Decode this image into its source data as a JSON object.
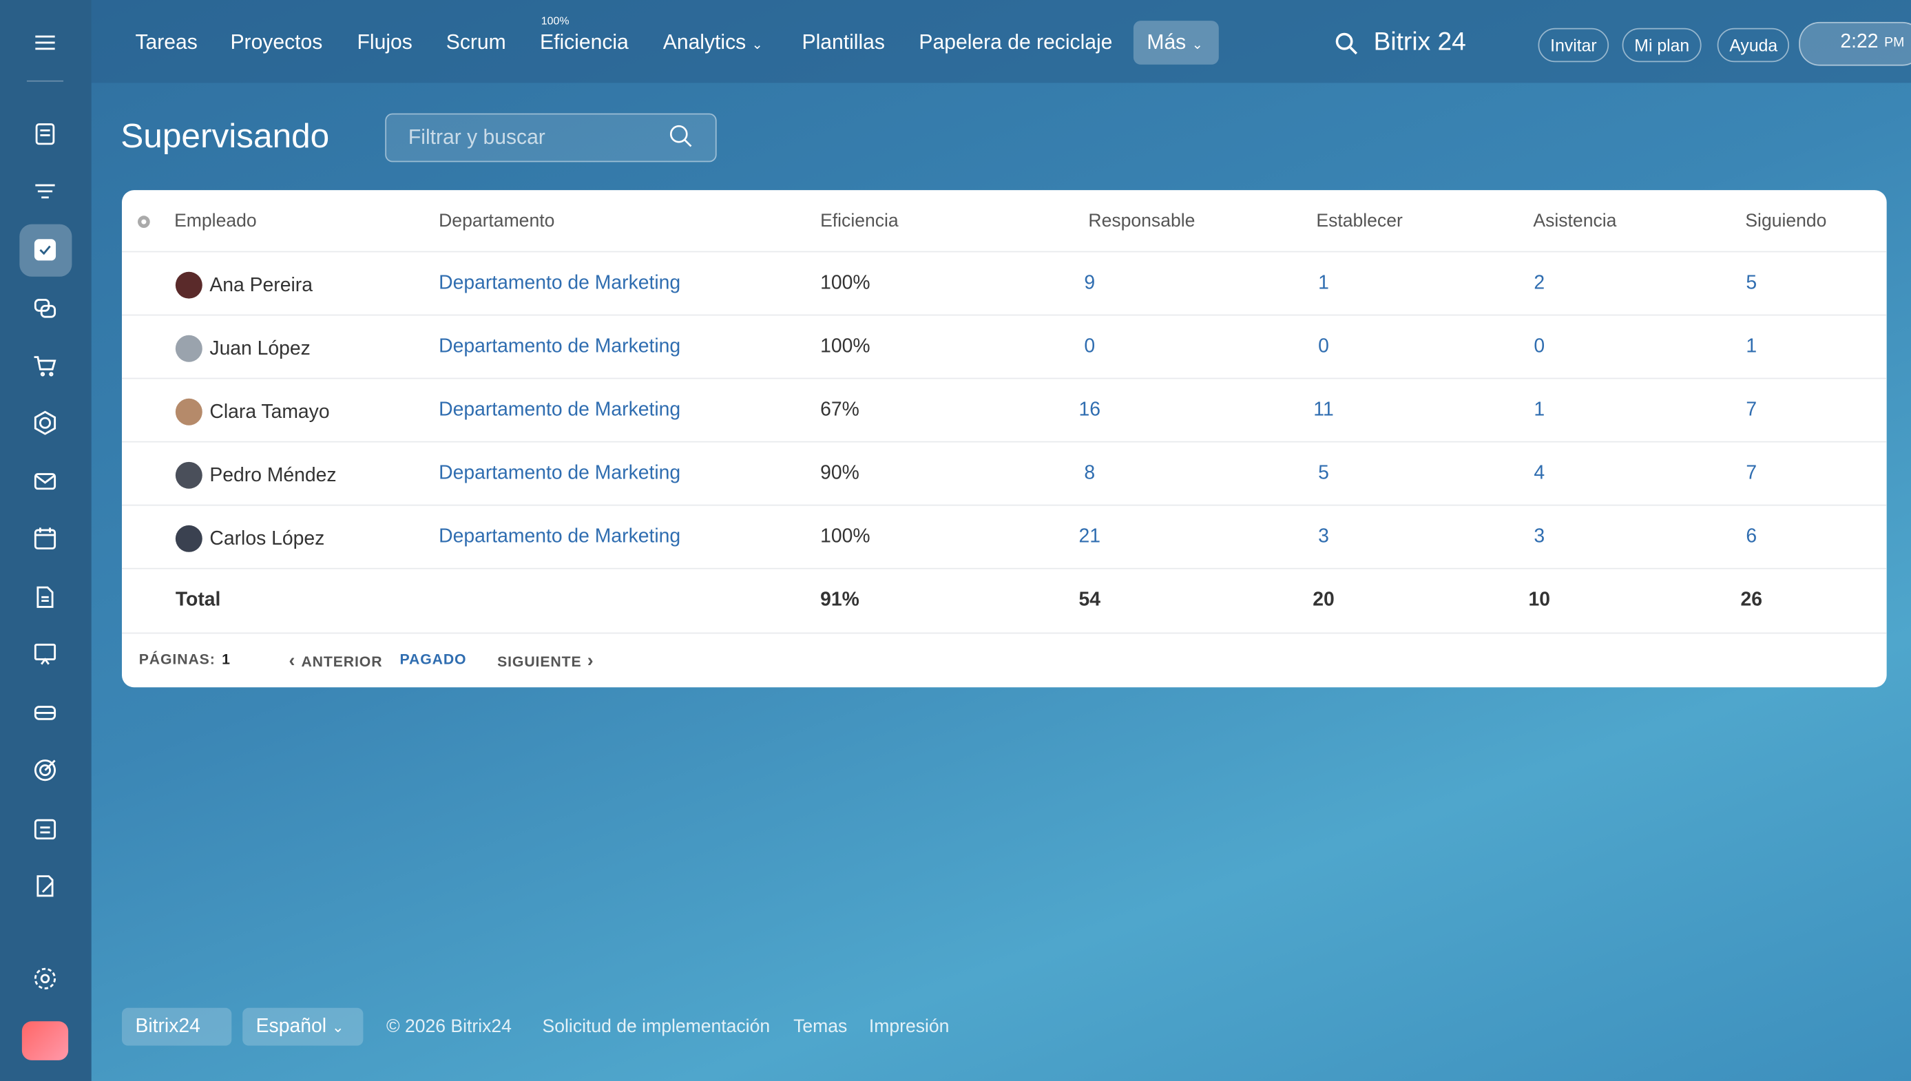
{
  "nav": {
    "items": [
      "Tareas",
      "Proyectos",
      "Flujos",
      "Scrum",
      "Eficiencia",
      "Analytics",
      "Plantillas",
      "Papelera de reciclaje",
      "Más"
    ],
    "badge": "100%",
    "brand": "Bitrix 24",
    "buttons": [
      "Invitar",
      "Mi plan",
      "Ayuda"
    ],
    "time": "2:22",
    "ampm": "PM"
  },
  "header": {
    "title": "Supervisando",
    "search": "Filtrar y buscar"
  },
  "table": {
    "columns": [
      "Empleado",
      "Departamento",
      "Eficiencia",
      "Responsable",
      "Establecer",
      "Asistencia",
      "Siguiendo"
    ],
    "rows": [
      [
        "Ana Pereira",
        "Departamento de Marketing",
        "100%",
        "9",
        "1",
        "2",
        "5"
      ],
      [
        "Juan López",
        "Departamento de Marketing",
        "100%",
        "0",
        "0",
        "0",
        "1"
      ],
      [
        "Clara Tamayo",
        "Departamento de Marketing",
        "67%",
        "16",
        "11",
        "1",
        "7"
      ],
      [
        "Pedro Méndez",
        "Departamento de Marketing",
        "90%",
        "8",
        "5",
        "4",
        "7"
      ],
      [
        "Carlos López",
        "Departamento de Marketing",
        "100%",
        "21",
        "3",
        "3",
        "6"
      ]
    ],
    "total": {
      "label": "Total",
      "values": [
        "91%",
        "54",
        "20",
        "10",
        "26"
      ]
    }
  },
  "pagination": {
    "label": "PÁGINAS:",
    "page": "1",
    "prev": "ANTERIOR",
    "current": "PAGADO",
    "next": "SIGUIENTE"
  },
  "footer": {
    "brand": "Bitrix24",
    "language": "Español",
    "copyright": "© 2026 Bitrix24",
    "links": [
      "Solicitud de implementación",
      "Temas",
      "Impresión"
    ]
  }
}
